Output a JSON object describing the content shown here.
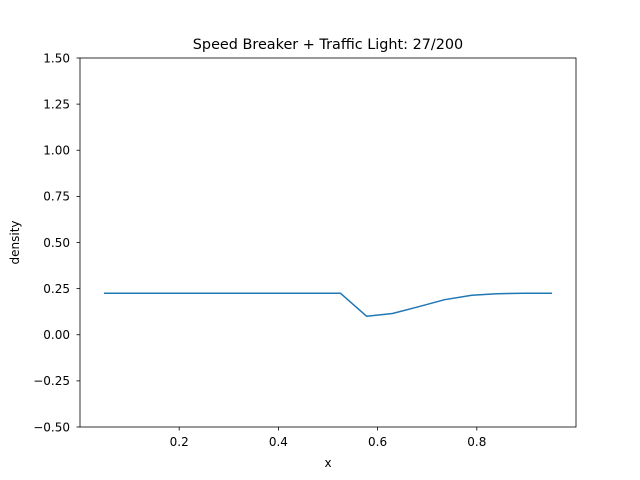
{
  "chart_data": {
    "type": "line",
    "title": "Speed Breaker + Traffic Light: 27/200",
    "xlabel": "x",
    "ylabel": "density",
    "xlim": [
      0.0,
      1.0
    ],
    "ylim": [
      -0.5,
      1.5
    ],
    "xticks": [
      0.2,
      0.4,
      0.6,
      0.8
    ],
    "xtick_labels": [
      "0.2",
      "0.4",
      "0.6",
      "0.8"
    ],
    "yticks": [
      -0.5,
      -0.25,
      0.0,
      0.25,
      0.5,
      0.75,
      1.0,
      1.25,
      1.5
    ],
    "ytick_labels": [
      "−0.50",
      "−0.25",
      "0.00",
      "0.25",
      "0.50",
      "0.75",
      "1.00",
      "1.25",
      "1.50"
    ],
    "grid": false,
    "series": [
      {
        "color": "#1f77b4",
        "x": [
          0.05,
          0.1,
          0.15,
          0.2,
          0.25,
          0.3,
          0.35,
          0.4,
          0.45,
          0.5,
          0.525,
          0.578,
          0.63,
          0.68,
          0.735,
          0.79,
          0.84,
          0.895,
          0.95
        ],
        "y": [
          0.225,
          0.225,
          0.225,
          0.225,
          0.225,
          0.225,
          0.225,
          0.225,
          0.225,
          0.225,
          0.225,
          0.1,
          0.115,
          0.15,
          0.19,
          0.214,
          0.222,
          0.225,
          0.225
        ]
      }
    ]
  }
}
